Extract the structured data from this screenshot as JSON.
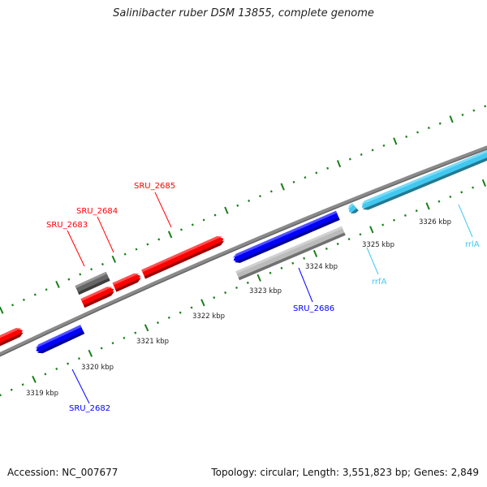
{
  "title": "Salinibacter ruber DSM 13855, complete genome",
  "footer": {
    "accession": "Accession: NC_007677",
    "topology": "Topology: circular; Length: 3,551,823 bp; Genes: 2,849"
  },
  "colors": {
    "forward_cds": "#ff0000",
    "reverse_cds": "#0000ff",
    "rrna": "#40c8f0",
    "pseudo": "#666666",
    "other": "#bbbbbb",
    "backbone": "#888888",
    "ticks": "#1a7f1a"
  },
  "tick_labels": [
    "3319 kbp",
    "3320 kbp",
    "3321 kbp",
    "3322 kbp",
    "3323 kbp",
    "3324 kbp",
    "3325 kbp",
    "3326 kbp"
  ],
  "features": [
    {
      "label": "SRU_2682",
      "color": "#0000ff"
    },
    {
      "label": "SRU_2683",
      "color": "#ff0000"
    },
    {
      "label": "SRU_2684",
      "color": "#ff0000"
    },
    {
      "label": "SRU_2685",
      "color": "#ff0000"
    },
    {
      "label": "SRU_2686",
      "color": "#0000ff"
    },
    {
      "label": "rrfA",
      "color": "#40c8f0"
    },
    {
      "label": "rrlA",
      "color": "#40c8f0"
    }
  ]
}
